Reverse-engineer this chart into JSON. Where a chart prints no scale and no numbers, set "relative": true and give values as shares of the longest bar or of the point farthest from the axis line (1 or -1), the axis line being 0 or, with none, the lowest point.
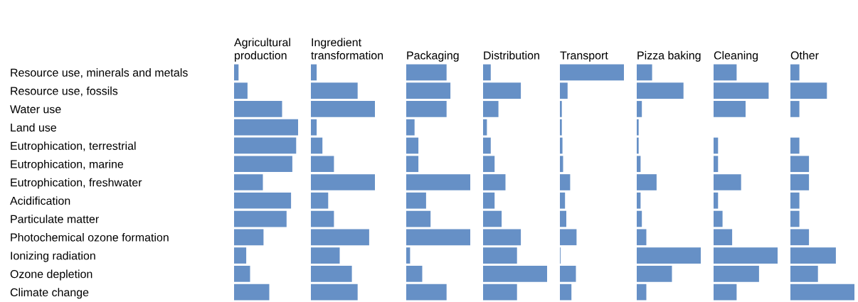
{
  "chart_data": [
    {
      "type": "bar",
      "orientation": "horizontal",
      "relative": true,
      "title": "Agricultural production",
      "tick_labels": "y",
      "color": "#6690c6",
      "categories": [
        "Resource use, minerals and metals",
        "Resource use, fossils",
        "Water use",
        "Land use",
        "Eutrophication, terrestrial",
        "Eutrophication, marine",
        "Eutrophication, freshwater",
        "Acidification",
        "Particulate matter",
        "Photochemical ozone formation",
        "Ionizing radiation",
        "Ozone depletion",
        "Climate change"
      ],
      "values": [
        0.07,
        0.21,
        0.75,
        1,
        0.97,
        0.91,
        0.45,
        0.89,
        0.82,
        0.46,
        0.19,
        0.25,
        0.55
      ]
    },
    {
      "type": "bar",
      "orientation": "horizontal",
      "relative": true,
      "title": "Ingredient transformation",
      "tick_labels": false,
      "color": "#6690c6",
      "values": [
        0.09,
        0.73,
        1,
        0.09,
        0.18,
        0.36,
        1,
        0.27,
        0.36,
        0.91,
        0.45,
        0.64,
        0.73
      ]
    },
    {
      "type": "bar",
      "orientation": "horizontal",
      "relative": true,
      "title": "Packaging",
      "tick_labels": false,
      "color": "#6690c6",
      "values": [
        0.63,
        0.69,
        0.63,
        0.13,
        0.19,
        0.19,
        1,
        0.31,
        0.38,
        1,
        0.06,
        0.25,
        0.63
      ]
    },
    {
      "type": "bar",
      "orientation": "horizontal",
      "relative": true,
      "title": "Distribution",
      "tick_labels": false,
      "color": "#6690c6",
      "values": [
        0.12,
        0.59,
        0.24,
        0.06,
        0.12,
        0.18,
        0.35,
        0.18,
        0.29,
        0.59,
        0.53,
        1,
        0.53
      ]
    },
    {
      "type": "bar",
      "orientation": "horizontal",
      "relative": true,
      "title": "Transport",
      "tick_labels": false,
      "color": "#6690c6",
      "values": [
        1,
        0.12,
        0.03,
        0.03,
        0.04,
        0.05,
        0.16,
        0.08,
        0.1,
        0.26,
        0.01,
        0.25,
        0.18
      ]
    },
    {
      "type": "bar",
      "orientation": "horizontal",
      "relative": true,
      "title": "Pizza baking",
      "tick_labels": false,
      "color": "#6690c6",
      "values": [
        0.24,
        0.73,
        0.08,
        0.03,
        0.03,
        0.06,
        0.31,
        0.06,
        0.08,
        0.15,
        1,
        0.55,
        0.15
      ]
    },
    {
      "type": "bar",
      "orientation": "horizontal",
      "relative": true,
      "title": "Cleaning",
      "tick_labels": false,
      "color": "#6690c6",
      "values": [
        0.36,
        0.86,
        0.5,
        0,
        0.07,
        0.07,
        0.43,
        0.07,
        0.14,
        0.29,
        1,
        0.71,
        0.36
      ]
    },
    {
      "type": "bar",
      "orientation": "horizontal",
      "relative": true,
      "title": "Other",
      "tick_labels": false,
      "color": "#6690c6",
      "values": [
        0.14,
        0.57,
        0.14,
        0,
        0.14,
        0.29,
        0.29,
        0.14,
        0.14,
        0.29,
        0.71,
        0.43,
        1
      ]
    }
  ]
}
